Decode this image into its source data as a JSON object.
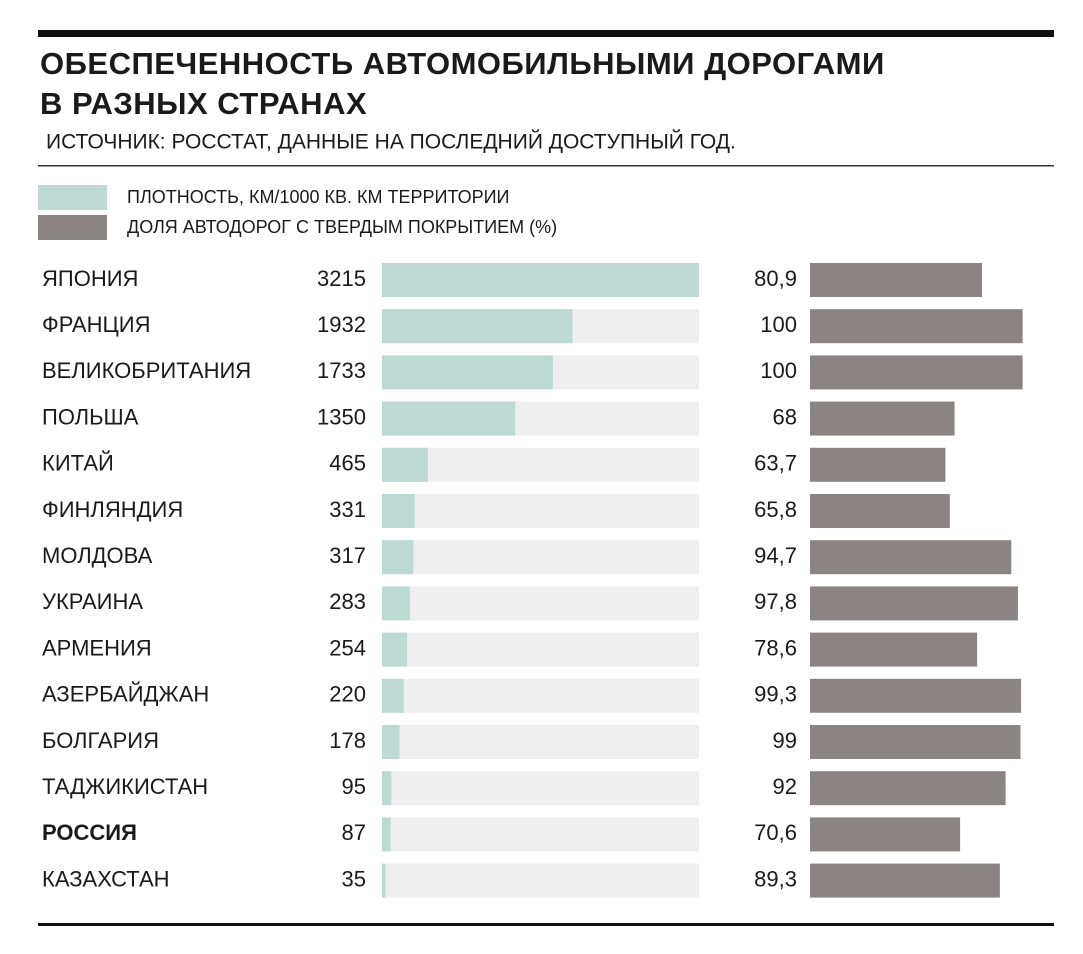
{
  "chart_data": {
    "type": "bar",
    "title": [
      "ОБЕСПЕЧЕННОСТЬ АВТОМОБИЛЬНЫМИ ДОРОГАМИ",
      "В РАЗНЫХ СТРАНАХ"
    ],
    "subtitle": "ИСТОЧНИК: РОССТАТ, ДАННЫЕ НА ПОСЛЕДНИЙ ДОСТУПНЫЙ ГОД.",
    "categories": [
      "ЯПОНИЯ",
      "ФРАНЦИЯ",
      "ВЕЛИКОБРИТАНИЯ",
      "ПОЛЬША",
      "КИТАЙ",
      "ФИНЛЯНДИЯ",
      "МОЛДОВА",
      "УКРАИНА",
      "АРМЕНИЯ",
      "АЗЕРБАЙДЖАН",
      "БОЛГАРИЯ",
      "ТАДЖИКИСТАН",
      "РОССИЯ",
      "КАЗАХСТАН"
    ],
    "highlight_category": "РОССИЯ",
    "series": [
      {
        "name": "ПЛОТНОСТЬ, КМ/1000 КВ. КМ ТЕРРИТОРИИ",
        "color": "#bdd9d4",
        "track_color": "#efefef",
        "xlim": [
          0,
          3215
        ],
        "values": [
          3215,
          1932,
          1733,
          1350,
          465,
          331,
          317,
          283,
          254,
          220,
          178,
          95,
          87,
          35
        ]
      },
      {
        "name": "ДОЛЯ АВТОДОРОГ С ТВЕРДЫМ ПОКРЫТИЕМ (%)",
        "color": "#8a8583",
        "xlim": [
          0,
          100
        ],
        "values": [
          80.9,
          100,
          100,
          68,
          63.7,
          65.8,
          94.7,
          97.8,
          78.6,
          99.3,
          99,
          92,
          70.6,
          89.3
        ],
        "value_labels": [
          "80,9",
          "100",
          "100",
          "68",
          "63,7",
          "65,8",
          "94,7",
          "97,8",
          "78,6",
          "99,3",
          "99",
          "92",
          "70,6",
          "89,3"
        ]
      }
    ]
  }
}
